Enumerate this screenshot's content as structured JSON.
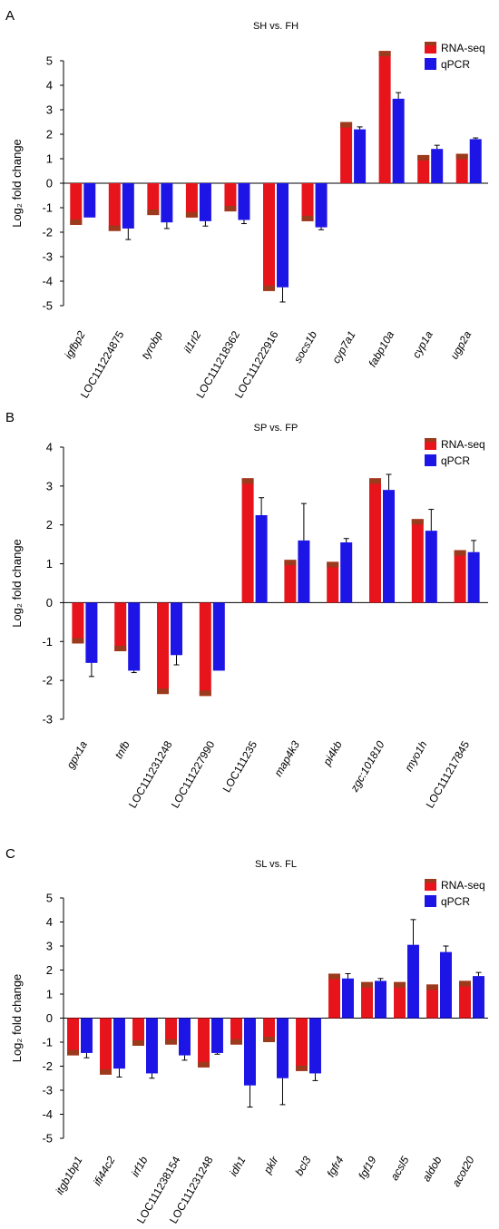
{
  "colors": {
    "rna": "#e8141b",
    "rna_top": "#9b3a1c",
    "qpcr": "#1d14e6",
    "axis": "#000000"
  },
  "chart_data": [
    {
      "type": "bar",
      "panel": "A",
      "title": "SH vs. FH",
      "ylabel": "Log₂ fold change",
      "ylim": [
        -5,
        5
      ],
      "yticks": [
        5,
        4,
        3,
        2,
        1,
        0,
        -1,
        -2,
        -3,
        -4,
        -5
      ],
      "legend": [
        "RNA-seq",
        "qPCR"
      ],
      "legend_position": "top-right",
      "categories": [
        "igfbp2",
        "LOC111224875",
        "tyrobp",
        "il1rl2",
        "LOC111218362",
        "LOC111222916",
        "socs1b",
        "cyp7a1",
        "fabp10a",
        "cyp1a",
        "ugp2a"
      ],
      "italic": [
        true,
        false,
        true,
        true,
        false,
        false,
        true,
        true,
        true,
        true,
        true
      ],
      "series": [
        {
          "name": "RNA-seq",
          "values": [
            -1.7,
            -1.95,
            -1.3,
            -1.4,
            -1.15,
            -4.4,
            -1.55,
            2.5,
            5.4,
            1.15,
            1.2
          ]
        },
        {
          "name": "qPCR",
          "values": [
            -1.4,
            -1.85,
            -1.6,
            -1.55,
            -1.5,
            -4.25,
            -1.8,
            2.2,
            3.45,
            1.4,
            1.8
          ],
          "errors": [
            0.0,
            0.45,
            0.25,
            0.2,
            0.15,
            0.6,
            0.1,
            0.1,
            0.25,
            0.15,
            0.05
          ]
        }
      ]
    },
    {
      "type": "bar",
      "panel": "B",
      "title": "SP vs. FP",
      "ylabel": "Log₂ fold change",
      "ylim": [
        -3,
        4
      ],
      "yticks": [
        4,
        3,
        2,
        1,
        0,
        -1,
        -2,
        -3
      ],
      "legend": [
        "RNA-seq",
        "qPCR"
      ],
      "legend_position": "top-right",
      "categories": [
        "gpx1a",
        "tnfb",
        "LOC111231248",
        "LOC111227990",
        "LOC111235",
        "map4k3",
        "pi4kb",
        "zgc:101810",
        "myo1h",
        "LOC111217845"
      ],
      "italic": [
        true,
        true,
        false,
        false,
        false,
        true,
        true,
        true,
        true,
        false
      ],
      "series": [
        {
          "name": "RNA-seq",
          "values": [
            -1.05,
            -1.25,
            -2.35,
            -2.4,
            3.2,
            1.1,
            1.05,
            3.2,
            2.15,
            1.35
          ]
        },
        {
          "name": "qPCR",
          "values": [
            -1.55,
            -1.75,
            -1.35,
            -1.75,
            2.25,
            1.6,
            1.55,
            2.9,
            1.85,
            1.3
          ],
          "errors": [
            0.35,
            0.05,
            0.25,
            0.0,
            0.45,
            0.95,
            0.1,
            0.4,
            0.55,
            0.3
          ]
        }
      ]
    },
    {
      "type": "bar",
      "panel": "C",
      "title": "SL vs. FL",
      "ylabel": "Log₂ fold change",
      "ylim": [
        -5,
        5
      ],
      "yticks": [
        5,
        4,
        3,
        2,
        1,
        0,
        -1,
        -2,
        -3,
        -4,
        -5
      ],
      "legend": [
        "RNA-seq",
        "qPCR"
      ],
      "legend_position": "top-right",
      "categories": [
        "itgb1bp1",
        "ifi44c2",
        "irf1b",
        "LOC111238154",
        "LOC111231248",
        "idh1",
        "pklr",
        "bcl3",
        "fgfr4",
        "fgf19",
        "acsl5",
        "aldob",
        "acot20"
      ],
      "italic": [
        true,
        true,
        true,
        false,
        false,
        true,
        true,
        true,
        true,
        true,
        true,
        true,
        true
      ],
      "series": [
        {
          "name": "RNA-seq",
          "values": [
            -1.55,
            -2.35,
            -1.15,
            -1.1,
            -2.05,
            -1.1,
            -1.0,
            -2.2,
            1.85,
            1.5,
            1.5,
            1.4,
            1.55
          ]
        },
        {
          "name": "qPCR",
          "values": [
            -1.45,
            -2.1,
            -2.3,
            -1.55,
            -1.45,
            -2.8,
            -2.5,
            -2.3,
            1.65,
            1.55,
            3.05,
            2.75,
            1.75
          ],
          "errors": [
            0.2,
            0.35,
            0.2,
            0.2,
            0.05,
            0.9,
            1.1,
            0.3,
            0.2,
            0.1,
            1.05,
            0.25,
            0.15
          ]
        }
      ]
    }
  ]
}
